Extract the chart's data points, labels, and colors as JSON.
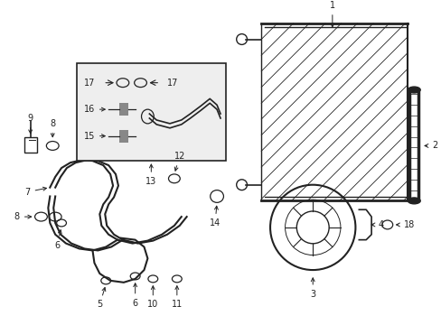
{
  "background_color": "#ffffff",
  "line_color": "#222222",
  "box_bg": "#eeeeee",
  "figsize": [
    4.89,
    3.6
  ],
  "dpi": 100,
  "fs": 7.0,
  "lw": 1.0
}
